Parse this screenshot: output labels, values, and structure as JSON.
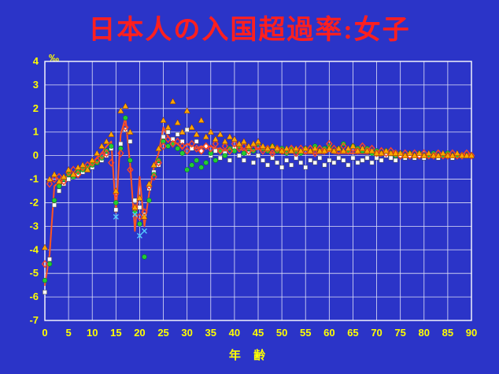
{
  "page": {
    "title": "日本人の入国超過率:女子",
    "background_color": "#2b34c8",
    "title_color": "#ff1f1f",
    "tick_color": "#ffff00"
  },
  "chart_data": {
    "type": "scatter",
    "title": "日本人の入国超過率:女子",
    "xlabel": "年 齢",
    "ylabel": "‰",
    "xlim": [
      0,
      90
    ],
    "ylim": [
      -7,
      4
    ],
    "x_tick_step": 5,
    "y_tick_step": 1,
    "grid": true,
    "legend": "none",
    "x_start": 0,
    "x_step": 1,
    "series": [
      {
        "name": "line-series",
        "marker": "none",
        "line": true,
        "color": "#ff5522",
        "values": [
          -5.5,
          -4.2,
          -1.3,
          -1.1,
          -1.0,
          -0.8,
          -0.8,
          -0.7,
          -0.6,
          -0.5,
          -0.3,
          -0.1,
          0.1,
          0.4,
          0.6,
          -2.4,
          0.9,
          1.6,
          -0.4,
          -3.2,
          -0.9,
          -3.0,
          -1.6,
          -0.5,
          0.1,
          1.2,
          0.8,
          0.6,
          0.5,
          0.3,
          0.5,
          0.4,
          0.3,
          0.4,
          0.3,
          0.4,
          0.3,
          0.3,
          0.2,
          0.3,
          0.4,
          0.3,
          0.2,
          0.3,
          0.2,
          0.3,
          0.2,
          0.2,
          0.1,
          0.2,
          0.1,
          0.1,
          0.2,
          0.1,
          0.1,
          0.1,
          0.1,
          0.1,
          0.1,
          0.1,
          0.2,
          0.1,
          0.1,
          0.1,
          0.1,
          0.1,
          0.1,
          0.1,
          0.1,
          0.1,
          0.0,
          0.0,
          0.1,
          0.0,
          0.0,
          0.0,
          0.0,
          0.0,
          0.0,
          0.0,
          0.0,
          0.0,
          0.0,
          0.0,
          0.0,
          0.0,
          0.0,
          0.0,
          0.0,
          0.0,
          0.0
        ]
      },
      {
        "name": "square-series",
        "marker": "square",
        "line": false,
        "color": "#ffffff",
        "values": [
          -5.8,
          -4.4,
          -2.1,
          -1.5,
          -1.2,
          -1.0,
          -0.9,
          -0.8,
          -0.7,
          -0.6,
          -0.5,
          -0.3,
          -0.2,
          0.0,
          0.3,
          -2.3,
          0.5,
          1.1,
          0.6,
          -1.9,
          -2.2,
          -2.5,
          -1.4,
          -0.7,
          -0.4,
          0.8,
          1.0,
          0.7,
          0.9,
          0.6,
          1.1,
          0.3,
          0.6,
          0.2,
          0.4,
          0.0,
          0.2,
          -0.1,
          0.1,
          -0.2,
          0.3,
          0.0,
          -0.2,
          0.1,
          -0.3,
          0.0,
          -0.2,
          -0.4,
          -0.1,
          -0.3,
          -0.5,
          -0.2,
          -0.4,
          -0.1,
          -0.3,
          -0.5,
          -0.2,
          -0.3,
          -0.1,
          -0.4,
          -0.2,
          -0.3,
          -0.1,
          -0.2,
          -0.4,
          -0.1,
          -0.3,
          -0.2,
          -0.1,
          -0.3,
          -0.1,
          -0.2,
          0.0,
          -0.1,
          -0.2,
          0.0,
          -0.1,
          0.0,
          -0.1,
          0.0,
          -0.1,
          0.0,
          0.0,
          -0.1,
          0.0,
          0.0,
          -0.1,
          0.0,
          0.0,
          0.0,
          0.0
        ]
      },
      {
        "name": "circle-series",
        "marker": "circle",
        "line": false,
        "color": "#22cc33",
        "values": [
          -5.3,
          -4.6,
          -1.9,
          -1.3,
          -1.0,
          -0.8,
          -0.9,
          -0.7,
          -0.6,
          -0.5,
          -0.4,
          -0.3,
          -0.1,
          0.2,
          0.4,
          -2.0,
          0.3,
          1.6,
          -0.2,
          -2.4,
          -2.9,
          -4.3,
          -1.9,
          -0.8,
          -0.2,
          0.6,
          0.4,
          0.5,
          0.3,
          0.1,
          -0.6,
          -0.4,
          -0.2,
          -0.5,
          -0.3,
          0.1,
          -0.2,
          0.2,
          0.0,
          0.3,
          0.2,
          0.4,
          0.1,
          0.3,
          0.2,
          0.5,
          0.3,
          0.2,
          0.4,
          0.2,
          0.3,
          0.1,
          0.3,
          0.2,
          0.1,
          0.3,
          0.2,
          0.4,
          0.2,
          0.3,
          0.4,
          0.2,
          0.3,
          0.5,
          0.2,
          0.4,
          0.3,
          0.2,
          0.3,
          0.1,
          0.2,
          0.1,
          0.2,
          0.1,
          0.0,
          0.1,
          0.0,
          0.1,
          0.0,
          0.1,
          0.0,
          0.0,
          0.1,
          0.0,
          0.0,
          0.1,
          0.0,
          0.0,
          0.0,
          0.0,
          0.0
        ]
      },
      {
        "name": "diamond-series",
        "marker": "diamond",
        "line": false,
        "color": "#ff4422",
        "values": [
          -4.6,
          -1.2,
          -1.0,
          -0.9,
          -1.1,
          -0.7,
          -0.6,
          -0.8,
          -0.5,
          -0.4,
          -0.3,
          -0.2,
          0.0,
          0.1,
          -0.3,
          -1.6,
          0.1,
          1.2,
          -0.6,
          -2.2,
          -2.6,
          -2.4,
          -1.3,
          -0.9,
          -0.3,
          0.4,
          0.7,
          0.5,
          0.6,
          0.4,
          0.2,
          0.5,
          0.3,
          0.2,
          0.4,
          0.3,
          0.5,
          0.2,
          0.4,
          0.2,
          0.5,
          0.3,
          0.4,
          0.2,
          0.3,
          0.4,
          0.2,
          0.3,
          0.1,
          0.3,
          0.2,
          0.2,
          0.3,
          0.1,
          0.3,
          0.2,
          0.3,
          0.1,
          0.3,
          0.2,
          0.5,
          0.3,
          0.2,
          0.4,
          0.2,
          0.3,
          0.2,
          0.4,
          0.2,
          0.3,
          0.1,
          0.2,
          0.1,
          0.2,
          0.1,
          0.0,
          0.1,
          0.0,
          0.1,
          0.0,
          0.1,
          0.0,
          0.0,
          0.1,
          0.0,
          0.0,
          0.1,
          0.0,
          0.0,
          0.1,
          0.0
        ]
      },
      {
        "name": "triangle-series",
        "marker": "triangle",
        "line": false,
        "color": "#ffa500",
        "values": [
          -3.9,
          -1.0,
          -0.8,
          -1.1,
          -0.9,
          -0.6,
          -0.8,
          -0.5,
          -0.4,
          -0.6,
          -0.2,
          0.1,
          0.4,
          0.6,
          0.9,
          -1.5,
          1.9,
          2.1,
          1.0,
          -2.2,
          -1.8,
          -2.6,
          -1.2,
          -0.4,
          0.3,
          1.5,
          1.2,
          2.3,
          1.4,
          1.0,
          1.9,
          1.2,
          0.9,
          1.5,
          0.8,
          1.0,
          0.7,
          0.9,
          0.6,
          0.8,
          0.7,
          0.5,
          0.6,
          0.4,
          0.5,
          0.6,
          0.4,
          0.3,
          0.4,
          0.3,
          0.2,
          0.3,
          0.2,
          0.3,
          0.2,
          0.3,
          0.2,
          0.3,
          0.2,
          0.2,
          0.3,
          0.2,
          0.3,
          0.2,
          0.3,
          0.4,
          0.2,
          0.3,
          0.2,
          0.2,
          0.1,
          0.1,
          0.2,
          0.1,
          0.1,
          0.1,
          0.0,
          0.1,
          0.0,
          0.1,
          0.0,
          0.1,
          0.0,
          0.0,
          0.1,
          0.0,
          0.0,
          0.1,
          0.0,
          0.0,
          0.0
        ]
      },
      {
        "name": "x-mark-series",
        "marker": "x",
        "line": false,
        "color": "#55ccff",
        "points": [
          [
            15,
            -2.6
          ],
          [
            19,
            -2.5
          ],
          [
            20,
            -3.4
          ],
          [
            21,
            -3.2
          ]
        ]
      }
    ]
  }
}
